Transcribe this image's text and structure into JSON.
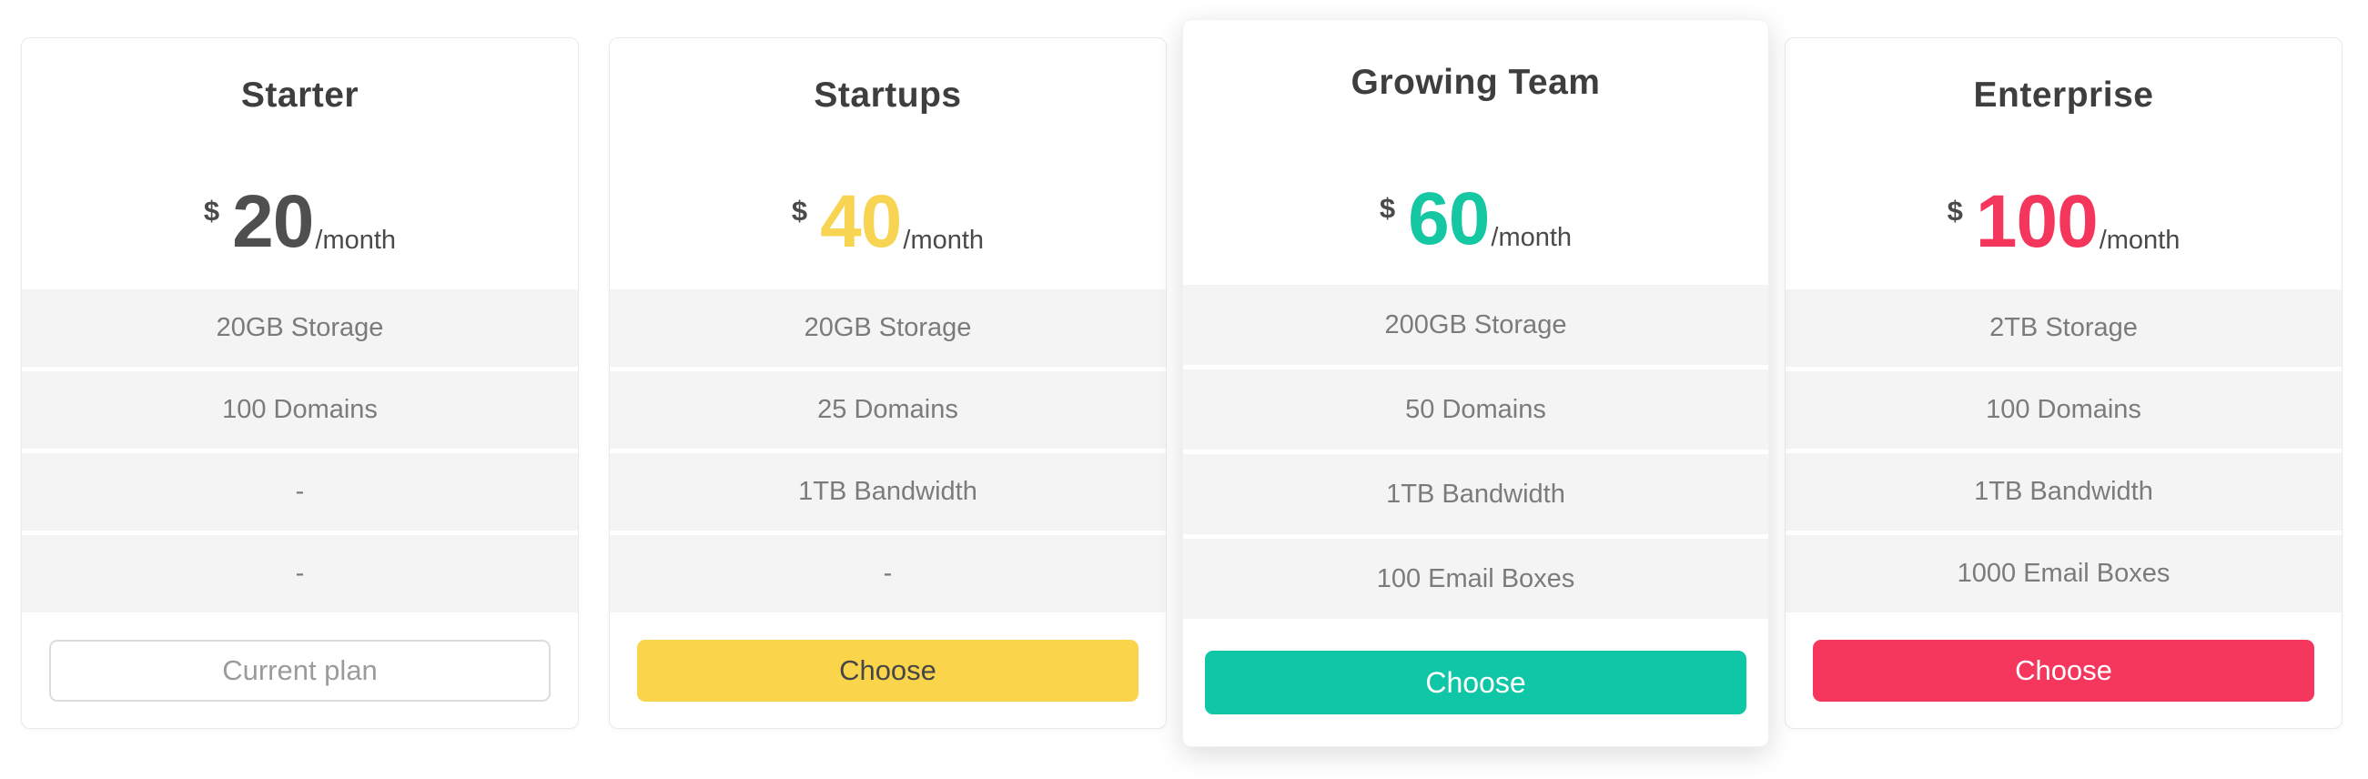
{
  "page": {
    "background": "#ffffff"
  },
  "plans": [
    {
      "id": "starter",
      "title": "Starter",
      "currency": "$",
      "price": "20",
      "period": "/month",
      "accent": "#4f4f4f",
      "features": [
        "20GB Storage",
        "100 Domains",
        "-",
        "-"
      ],
      "button": {
        "label": "Current plan",
        "style": "outline",
        "bg": "#ffffff",
        "text_color": "#9b9b9b",
        "border_color": "#dcdcdc"
      },
      "featured": false
    },
    {
      "id": "startups",
      "title": "Startups",
      "currency": "$",
      "price": "40",
      "period": "/month",
      "accent": "#f8d453",
      "features": [
        "20GB Storage",
        "25 Domains",
        "1TB Bandwidth",
        "-"
      ],
      "button": {
        "label": "Choose",
        "style": "solid",
        "bg": "#fad44b",
        "text_color": "#474747"
      },
      "featured": false
    },
    {
      "id": "growing-team",
      "title": "Growing Team",
      "currency": "$",
      "price": "60",
      "period": "/month",
      "accent": "#16c7a4",
      "features": [
        "200GB Storage",
        "50 Domains",
        "1TB Bandwidth",
        "100 Email Boxes"
      ],
      "button": {
        "label": "Choose",
        "style": "solid",
        "bg": "#0fc7a6",
        "text_color": "#ffffff"
      },
      "featured": true
    },
    {
      "id": "enterprise",
      "title": "Enterprise",
      "currency": "$",
      "price": "100",
      "period": "/month",
      "accent": "#f5365c",
      "features": [
        "2TB Storage",
        "100 Domains",
        "1TB Bandwidth",
        "1000 Email Boxes"
      ],
      "button": {
        "label": "Choose",
        "style": "solid",
        "bg": "#f6375d",
        "text_color": "#ffffff"
      },
      "featured": false
    }
  ]
}
